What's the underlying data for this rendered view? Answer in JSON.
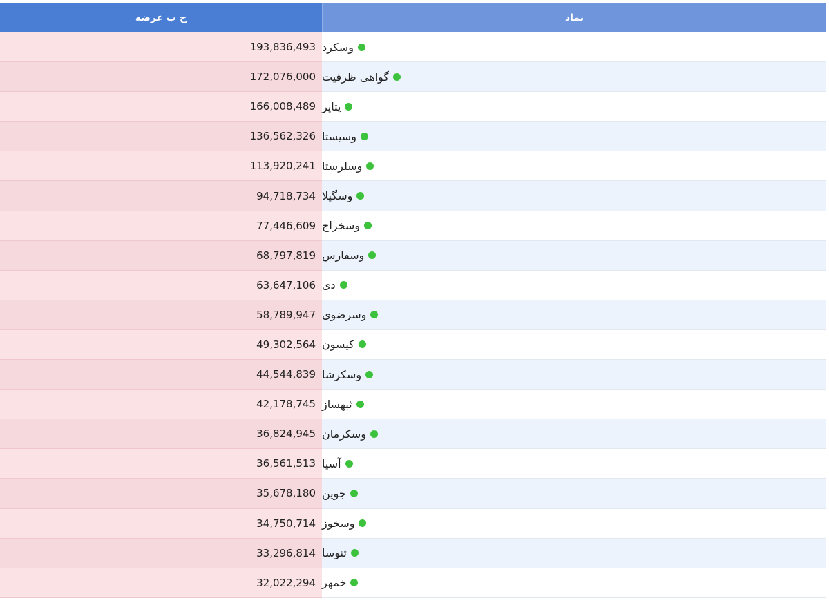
{
  "table": {
    "headers": {
      "volume": "ح ب عرضه",
      "symbol": "نماد"
    },
    "status_color": "#3cc23c",
    "rows": [
      {
        "symbol": "وسکرد",
        "volume": "193,836,493"
      },
      {
        "symbol": "گواهی ظرفیت",
        "volume": "172,076,000"
      },
      {
        "symbol": "پتایر",
        "volume": "166,008,489"
      },
      {
        "symbol": "وسیستا",
        "volume": "136,562,326"
      },
      {
        "symbol": "وسلرستا",
        "volume": "113,920,241"
      },
      {
        "symbol": "وسگیلا",
        "volume": "94,718,734"
      },
      {
        "symbol": "وسخراج",
        "volume": "77,446,609"
      },
      {
        "symbol": "وسفارس",
        "volume": "68,797,819"
      },
      {
        "symbol": "دی",
        "volume": "63,647,106"
      },
      {
        "symbol": "وسرضوی",
        "volume": "58,789,947"
      },
      {
        "symbol": "کیسون",
        "volume": "49,302,564"
      },
      {
        "symbol": "وسکرشا",
        "volume": "44,544,839"
      },
      {
        "symbol": "ثبهساز",
        "volume": "42,178,745"
      },
      {
        "symbol": "وسکرمان",
        "volume": "36,824,945"
      },
      {
        "symbol": "آسیا",
        "volume": "36,561,513"
      },
      {
        "symbol": "جوین",
        "volume": "35,678,180"
      },
      {
        "symbol": "وسخوز",
        "volume": "34,750,714"
      },
      {
        "symbol": "ثنوسا",
        "volume": "33,296,814"
      },
      {
        "symbol": "خمهر",
        "volume": "32,022,294"
      }
    ]
  }
}
